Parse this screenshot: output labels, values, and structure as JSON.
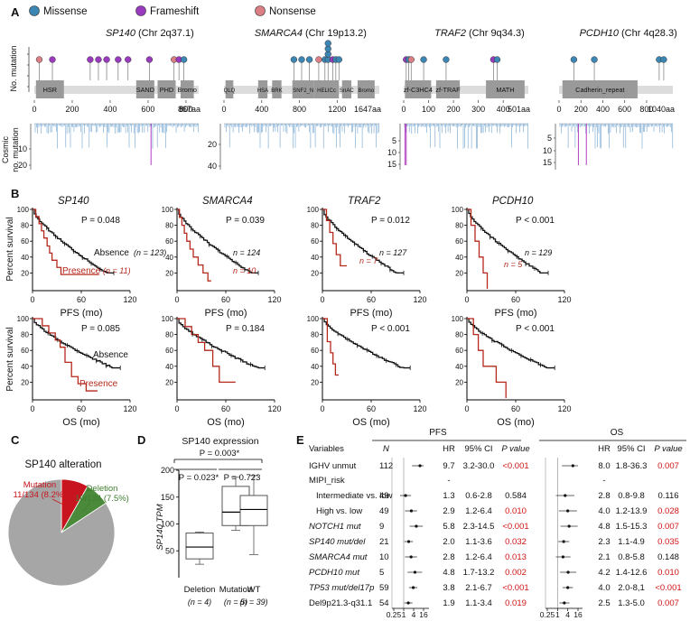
{
  "legend": {
    "items": [
      {
        "label": "Missense",
        "color": "#3c86b4"
      },
      {
        "label": "Frameshift",
        "color": "#9a3bbf"
      },
      {
        "label": "Nonsense",
        "color": "#dc7f85"
      }
    ]
  },
  "panels": {
    "a": "A",
    "b": "B",
    "c": "C",
    "d": "D",
    "e": "E"
  },
  "panel_a": {
    "ylabel_top": "No. mutation",
    "ylabel_bottom": [
      "Cosmic",
      "no. mutation"
    ],
    "genes": [
      {
        "name": "SP140",
        "chr": "(Chr 2q37.1)",
        "length_label": "867aa",
        "ticks": [
          "0",
          "200",
          "400",
          "600",
          "800"
        ],
        "domains": [
          "HSR",
          "SAND",
          "PHD",
          "Bromo"
        ],
        "cosmic_ticks": [
          "10",
          "20"
        ]
      },
      {
        "name": "SMARCA4",
        "chr": "(Chr 19p13.2)",
        "length_label": "1647aa",
        "ticks": [
          "0",
          "400",
          "800",
          "1200"
        ],
        "domains": [
          "QLQ",
          "HSA",
          "BRK",
          "SNF2_N",
          "HELICc",
          "SnAC",
          "Bromo"
        ],
        "cosmic_ticks": [
          "20",
          "40"
        ]
      },
      {
        "name": "TRAF2",
        "chr": "(Chr 9q34.3)",
        "length_label": "501aa",
        "ticks": [
          "0",
          "100",
          "200",
          "300",
          "400"
        ],
        "domains": [
          "zf-C3HC4",
          "zf-TRAF",
          "MATH"
        ],
        "cosmic_ticks": [
          "5",
          "10",
          "15"
        ]
      },
      {
        "name": "PCDH10",
        "chr": "(Chr 4q28.3)",
        "length_label": "1040aa",
        "ticks": [
          "0",
          "200",
          "400",
          "600",
          "800"
        ],
        "domains": [
          "Cadherin_repeat"
        ],
        "cosmic_ticks": [
          "5",
          "10",
          "15"
        ]
      }
    ]
  },
  "panel_b": {
    "ylabel": "Percent survival",
    "pfs_xlabel": "PFS (mo)",
    "os_xlabel": "OS (mo)",
    "y_ticks": [
      "100",
      "80",
      "60",
      "40",
      "20"
    ],
    "x_ticks": [
      "0",
      "60",
      "120"
    ],
    "absence_label": "Absence",
    "presence_label": "Presence",
    "pfs": [
      {
        "gene": "SP140",
        "p": "P = 0.048",
        "n_abs": "(n = 123)",
        "n_pres": "(n = 11)"
      },
      {
        "gene": "SMARCA4",
        "p": "P = 0.039",
        "n_abs": "n = 124",
        "n_pres": "n = 10"
      },
      {
        "gene": "TRAF2",
        "p": "P = 0.012",
        "n_abs": "n = 127",
        "n_pres": "n = 7"
      },
      {
        "gene": "PCDH10",
        "p": "P < 0.001",
        "n_abs": "n = 129",
        "n_pres": "n = 5"
      }
    ],
    "os": [
      {
        "p": "P = 0.085"
      },
      {
        "p": "P = 0.184"
      },
      {
        "p": "P < 0.001"
      },
      {
        "p": "P < 0.001"
      }
    ]
  },
  "chart_data": [
    {
      "type": "pie",
      "title": "SP140 alteration",
      "slices": [
        {
          "label": "Mutation",
          "count": "11/134 (8.2%)",
          "value": 8.2,
          "color": "#c8141e"
        },
        {
          "label": "Deletion",
          "count": "10/134 (7.5%)",
          "value": 7.5,
          "color": "#4a8a3a"
        },
        {
          "label": "",
          "value": 84.3,
          "color": "#a6a6a6"
        }
      ]
    },
    {
      "type": "box",
      "title": "SP140 expression",
      "ylabel": "SP140 TPM",
      "ylim": [
        0,
        200
      ],
      "yticks": [
        "50",
        "100",
        "150",
        "200"
      ],
      "comparisons": [
        "P = 0.003*",
        "P = 0.023*",
        "P = 0.723"
      ],
      "groups": [
        {
          "label": "Deletion",
          "n": "(n = 4)",
          "min": 25,
          "q1": 35,
          "median": 57,
          "q3": 83,
          "max": 85
        },
        {
          "label": "Mutation",
          "n": "(n = 5)",
          "min": 88,
          "q1": 97,
          "median": 122,
          "q3": 170,
          "max": 187
        },
        {
          "label": "WT",
          "n": "(n = 39)",
          "min": 43,
          "q1": 97,
          "median": 127,
          "q3": 153,
          "max": 190
        }
      ]
    },
    {
      "type": "forest",
      "pfs_title": "PFS",
      "os_title": "OS",
      "headers": {
        "variables": "Variables",
        "n": "N",
        "hr": "HR",
        "ci": "95% CI",
        "p": "P value"
      },
      "x_ticks": [
        "0.25",
        "1",
        "4",
        "16"
      ],
      "rows": [
        {
          "var": "IGHV unmut",
          "italic": false,
          "n": "112",
          "pfs_hr": "9.7",
          "pfs_ci": "3.2-30.0",
          "pfs_p": "<0.001",
          "pfs_sig": true,
          "os_hr": "8.0",
          "os_ci": "1.8-36.3",
          "os_p": "0.007",
          "os_sig": true,
          "pfs_v": [
            9.7,
            3.2,
            30.0
          ],
          "os_v": [
            8.0,
            1.8,
            36.3
          ]
        },
        {
          "var": "MIPI_risk",
          "italic": false,
          "n": "",
          "pfs_hr": "-",
          "pfs_ci": "",
          "pfs_p": "",
          "pfs_sig": false,
          "os_hr": "-",
          "os_ci": "",
          "os_p": "",
          "os_sig": false,
          "pfs_v": null,
          "os_v": null
        },
        {
          "var": "Intermediate vs. low",
          "italic": false,
          "n": "49",
          "pfs_hr": "1.3",
          "pfs_ci": "0.6-2.8",
          "pfs_p": "0.584",
          "pfs_sig": false,
          "os_hr": "2.8",
          "os_ci": "0.8-9.8",
          "os_p": "0.116",
          "os_sig": false,
          "pfs_v": [
            1.3,
            0.6,
            2.8
          ],
          "os_v": [
            2.8,
            0.8,
            9.8
          ]
        },
        {
          "var": "High vs. low",
          "italic": false,
          "n": "49",
          "pfs_hr": "2.9",
          "pfs_ci": "1.2-6.4",
          "pfs_p": "0.010",
          "pfs_sig": true,
          "os_hr": "4.0",
          "os_ci": "1.2-13.9",
          "os_p": "0.028",
          "os_sig": true,
          "pfs_v": [
            2.9,
            1.2,
            6.4
          ],
          "os_v": [
            4.0,
            1.2,
            13.9
          ]
        },
        {
          "var": "NOTCH1 mut",
          "italic": true,
          "n": "9",
          "pfs_hr": "5.8",
          "pfs_ci": "2.3-14.5",
          "pfs_p": "<0.001",
          "pfs_sig": true,
          "os_hr": "4.8",
          "os_ci": "1.5-15.3",
          "os_p": "0.007",
          "os_sig": true,
          "pfs_v": [
            5.8,
            2.3,
            14.5
          ],
          "os_v": [
            4.8,
            1.5,
            15.3
          ]
        },
        {
          "var": "SP140 mut/del",
          "italic": true,
          "n": "21",
          "pfs_hr": "2.0",
          "pfs_ci": "1.1-3.6",
          "pfs_p": "0.032",
          "pfs_sig": true,
          "os_hr": "2.3",
          "os_ci": "1.1-4.9",
          "os_p": "0.035",
          "os_sig": true,
          "pfs_v": [
            2.0,
            1.1,
            3.6
          ],
          "os_v": [
            2.3,
            1.1,
            4.9
          ]
        },
        {
          "var": "SMARCA4 mut",
          "italic": true,
          "n": "10",
          "pfs_hr": "2.8",
          "pfs_ci": "1.2-6.4",
          "pfs_p": "0.013",
          "pfs_sig": true,
          "os_hr": "2.1",
          "os_ci": "0.8-5.8",
          "os_p": "0.148",
          "os_sig": false,
          "pfs_v": [
            2.8,
            1.2,
            6.4
          ],
          "os_v": [
            2.1,
            0.8,
            5.8
          ]
        },
        {
          "var": "PCDH10 mut",
          "italic": true,
          "n": "5",
          "pfs_hr": "4.8",
          "pfs_ci": "1.7-13.2",
          "pfs_p": "0.002",
          "pfs_sig": true,
          "os_hr": "4.2",
          "os_ci": "1.4-12.6",
          "os_p": "0.010",
          "os_sig": true,
          "pfs_v": [
            4.8,
            1.7,
            13.2
          ],
          "os_v": [
            4.2,
            1.4,
            12.6
          ]
        },
        {
          "var": "TP53 mut/del17p",
          "italic": true,
          "n": "59",
          "pfs_hr": "3.8",
          "pfs_ci": "2.1-6.7",
          "pfs_p": "<0.001",
          "pfs_sig": true,
          "os_hr": "4.0",
          "os_ci": "2.0-8,1",
          "os_p": "<0.001",
          "os_sig": true,
          "pfs_v": [
            3.8,
            2.1,
            6.7
          ],
          "os_v": [
            4.0,
            2.0,
            8.1
          ]
        },
        {
          "var": "Del9p21.3-q31.1",
          "italic": false,
          "n": "54",
          "pfs_hr": "1.9",
          "pfs_ci": "1.1-3.4",
          "pfs_p": "0.019",
          "pfs_sig": true,
          "os_hr": "2.5",
          "os_ci": "1.3-5.0",
          "os_p": "0.007",
          "os_sig": true,
          "pfs_v": [
            1.9,
            1.1,
            3.4
          ],
          "os_v": [
            2.5,
            1.3,
            5.0
          ]
        }
      ]
    }
  ]
}
